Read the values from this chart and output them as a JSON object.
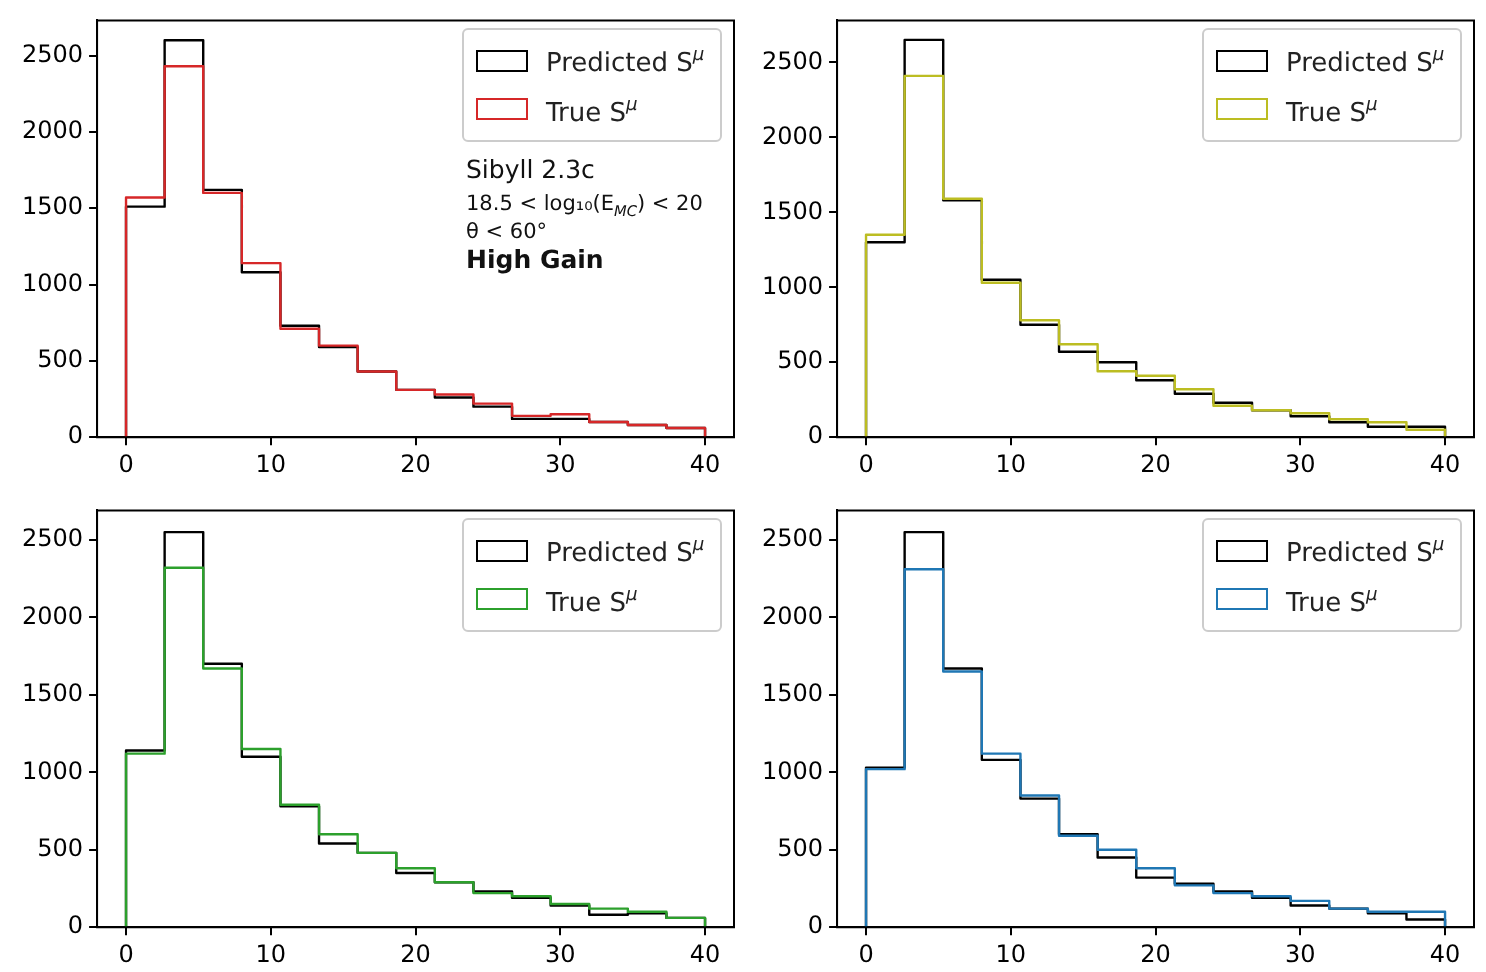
{
  "chart_data": [
    {
      "type": "histogram",
      "bins": [
        0,
        2.667,
        5.333,
        8,
        10.667,
        13.333,
        16,
        18.667,
        21.333,
        24,
        26.667,
        29.333,
        32,
        34.667,
        37.333,
        40
      ],
      "xlim": [
        -2,
        42
      ],
      "xticks": [
        0,
        10,
        20,
        30,
        40
      ],
      "ylim": [
        0,
        2730
      ],
      "yticks": [
        0,
        500,
        1000,
        1500,
        2000,
        2500
      ],
      "legend": "top right",
      "series": [
        {
          "name": "Predicted S$^{μ}$",
          "color": "#000000",
          "values": [
            1510,
            2600,
            1620,
            1080,
            730,
            590,
            430,
            310,
            260,
            200,
            120,
            120,
            100,
            80,
            60
          ]
        },
        {
          "name": "True S$^{μ}$",
          "color": "#d62728",
          "values": [
            1570,
            2430,
            1600,
            1140,
            710,
            600,
            430,
            310,
            280,
            220,
            140,
            150,
            100,
            80,
            60
          ]
        }
      ],
      "annotations": [
        "Sibyll 2.3c",
        "18.5 < log₁₀(E$_{MC}$) < 20",
        "θ < 60°",
        "High Gain"
      ]
    },
    {
      "type": "histogram",
      "bins": [
        0,
        2.667,
        5.333,
        8,
        10.667,
        13.333,
        16,
        18.667,
        21.333,
        24,
        26.667,
        29.333,
        32,
        34.667,
        37.333,
        40
      ],
      "xlim": [
        -2,
        42
      ],
      "xticks": [
        0,
        10,
        20,
        30,
        40
      ],
      "ylim": [
        0,
        2780
      ],
      "yticks": [
        0,
        500,
        1000,
        1500,
        2000,
        2500
      ],
      "legend": "top right",
      "series": [
        {
          "name": "Predicted S$^{μ}$",
          "color": "#000000",
          "values": [
            1300,
            2650,
            1580,
            1050,
            750,
            570,
            500,
            380,
            290,
            230,
            180,
            140,
            100,
            70,
            70
          ]
        },
        {
          "name": "True S$^{μ}$",
          "color": "#bcbd22",
          "values": [
            1350,
            2410,
            1590,
            1030,
            780,
            620,
            440,
            410,
            320,
            210,
            180,
            160,
            120,
            100,
            50
          ]
        }
      ]
    },
    {
      "type": "histogram",
      "bins": [
        0,
        2.667,
        5.333,
        8,
        10.667,
        13.333,
        16,
        18.667,
        21.333,
        24,
        26.667,
        29.333,
        32,
        34.667,
        37.333,
        40
      ],
      "xlim": [
        -2,
        42
      ],
      "xticks": [
        0,
        10,
        20,
        30,
        40
      ],
      "ylim": [
        0,
        2690
      ],
      "yticks": [
        0,
        500,
        1000,
        1500,
        2000,
        2500
      ],
      "legend": "top right",
      "series": [
        {
          "name": "Predicted S$^{μ}$",
          "color": "#000000",
          "values": [
            1140,
            2550,
            1700,
            1100,
            780,
            540,
            480,
            350,
            290,
            230,
            190,
            140,
            80,
            90,
            60
          ]
        },
        {
          "name": "True S$^{μ}$",
          "color": "#2ca02c",
          "values": [
            1120,
            2320,
            1670,
            1150,
            790,
            600,
            480,
            380,
            290,
            220,
            200,
            150,
            120,
            100,
            60
          ]
        }
      ]
    },
    {
      "type": "histogram",
      "bins": [
        0,
        2.667,
        5.333,
        8,
        10.667,
        13.333,
        16,
        18.667,
        21.333,
        24,
        26.667,
        29.333,
        32,
        34.667,
        37.333,
        40
      ],
      "xlim": [
        -2,
        42
      ],
      "xticks": [
        0,
        10,
        20,
        30,
        40
      ],
      "ylim": [
        0,
        2690
      ],
      "yticks": [
        0,
        500,
        1000,
        1500,
        2000,
        2500
      ],
      "legend": "top right",
      "series": [
        {
          "name": "Predicted S$^{μ}$",
          "color": "#000000",
          "values": [
            1030,
            2550,
            1670,
            1080,
            830,
            600,
            450,
            320,
            280,
            230,
            190,
            140,
            120,
            90,
            50
          ]
        },
        {
          "name": "True S$^{μ}$",
          "color": "#1f77b4",
          "values": [
            1020,
            2310,
            1650,
            1120,
            850,
            590,
            500,
            380,
            270,
            220,
            200,
            170,
            120,
            100,
            100
          ]
        }
      ]
    }
  ]
}
